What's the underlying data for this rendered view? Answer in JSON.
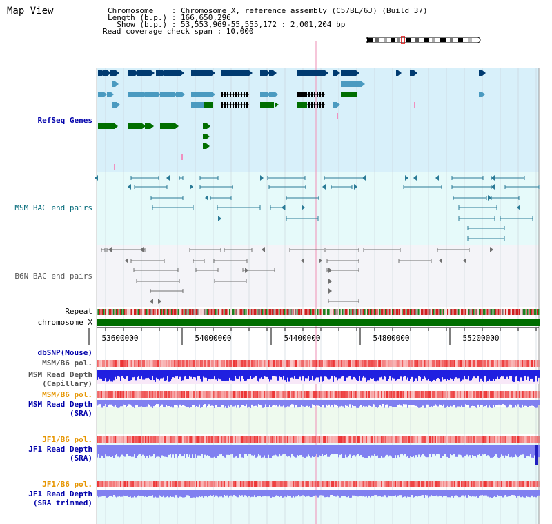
{
  "page": {
    "title": "Map View"
  },
  "header": {
    "lines": [
      "Chromosome    : Chromosome X, reference assembly (C57BL/6J) (Build 37)",
      "Length (b.p.) : 166,650,296",
      "  Show (b.p.) : 53,553,969-55,555,172 : 2,001,204 bp",
      "Read coverage check span : 10,000"
    ]
  },
  "tracks": {
    "refseq": "RefSeq Genes",
    "msm_bac": "MSM BAC end pairs",
    "b6n_bac": "B6N BAC end pairs",
    "repeat": "Repeat",
    "chromosome": "chromosome X",
    "dbsnp": "dbSNP(Mouse)",
    "msm_b6_pol": "MSM/B6 pol.",
    "msm_depth_cap_1": "MSM Read Depth",
    "msm_depth_cap_2": "(Capillary)",
    "msm_b6_pol2": "MSM/B6 pol.",
    "msm_depth_sra_1": "MSM Read Depth",
    "msm_depth_sra_2": "(SRA)",
    "jf1_b6_pol": "JF1/B6 pol.",
    "jf1_depth_sra_1": "JF1 Read Depth",
    "jf1_depth_sra_2": "(SRA)",
    "jf1_b6_pol2": "JF1/B6 pol.",
    "jf1_depth_trim_1": "JF1 Read Depth",
    "jf1_depth_trim_2": "(SRA trimmed)"
  },
  "axis": {
    "ticks": [
      "53600000",
      "54000000",
      "54400000",
      "54800000",
      "55200000"
    ]
  },
  "colors": {
    "refseq_bg": "#d8f0fa",
    "msm_bg": "#e6fafa",
    "b6n_bg": "#f4f4f8",
    "gene_dark": "#003a70",
    "gene_mid": "#4a9ac0",
    "gene_green": "#006e00",
    "bac_teal": "#2a7a96",
    "bac_gray": "#707070",
    "chrom_green": "#006e00",
    "depth_blue": "#2020e0",
    "depth_light": "#8080f0"
  }
}
